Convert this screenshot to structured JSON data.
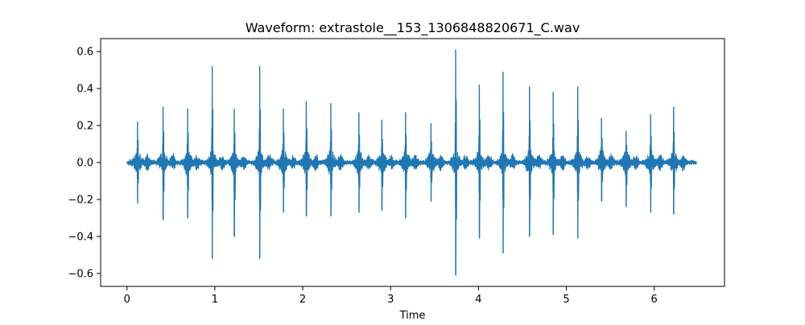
{
  "chart_data": {
    "type": "line",
    "title": "Waveform: extrastole__153_1306848820671_C.wav",
    "xlabel": "Time",
    "ylabel": "",
    "xlim": [
      -0.3,
      6.8
    ],
    "ylim": [
      -0.67,
      0.67
    ],
    "x_ticks": [
      0,
      1,
      2,
      3,
      4,
      5,
      6
    ],
    "x_tick_labels": [
      "0",
      "1",
      "2",
      "3",
      "4",
      "5",
      "6"
    ],
    "y_ticks": [
      -0.6,
      -0.4,
      -0.2,
      0.0,
      0.2,
      0.4,
      0.6
    ],
    "y_tick_labels": [
      "−0.6",
      "−0.4",
      "−0.2",
      "0.0",
      "0.2",
      "0.4",
      "0.6"
    ],
    "grid": false,
    "series": [
      {
        "color": "#1f77b4",
        "duration": 6.48,
        "baseline_amplitude": 0.012,
        "bursts": [
          {
            "t": 0.12,
            "max": 0.22,
            "min": -0.22
          },
          {
            "t": 0.41,
            "max": 0.3,
            "min": -0.31
          },
          {
            "t": 0.69,
            "max": 0.29,
            "min": -0.3
          },
          {
            "t": 0.97,
            "max": 0.52,
            "min": -0.52
          },
          {
            "t": 1.22,
            "max": 0.29,
            "min": -0.4
          },
          {
            "t": 1.51,
            "max": 0.52,
            "min": -0.52
          },
          {
            "t": 1.78,
            "max": 0.29,
            "min": -0.27
          },
          {
            "t": 2.04,
            "max": 0.33,
            "min": -0.29
          },
          {
            "t": 2.32,
            "max": 0.32,
            "min": -0.29
          },
          {
            "t": 2.64,
            "max": 0.27,
            "min": -0.27
          },
          {
            "t": 2.9,
            "max": 0.23,
            "min": -0.26
          },
          {
            "t": 3.17,
            "max": 0.27,
            "min": -0.3
          },
          {
            "t": 3.46,
            "max": 0.21,
            "min": -0.21
          },
          {
            "t": 3.74,
            "max": 0.61,
            "min": -0.61
          },
          {
            "t": 4.01,
            "max": 0.42,
            "min": -0.41
          },
          {
            "t": 4.28,
            "max": 0.49,
            "min": -0.49
          },
          {
            "t": 4.58,
            "max": 0.41,
            "min": -0.4
          },
          {
            "t": 4.85,
            "max": 0.38,
            "min": -0.39
          },
          {
            "t": 5.13,
            "max": 0.41,
            "min": -0.41
          },
          {
            "t": 5.4,
            "max": 0.24,
            "min": -0.21
          },
          {
            "t": 5.68,
            "max": 0.17,
            "min": -0.24
          },
          {
            "t": 5.96,
            "max": 0.26,
            "min": -0.27
          },
          {
            "t": 6.22,
            "max": 0.3,
            "min": -0.28
          }
        ]
      }
    ]
  }
}
